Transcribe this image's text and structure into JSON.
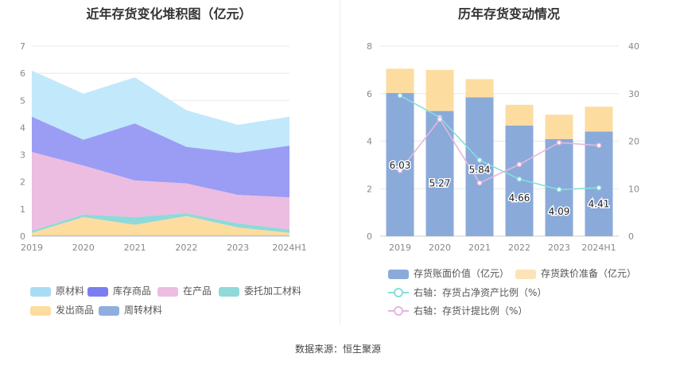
{
  "left_chart": {
    "title": "近年存货变化堆积图（亿元）",
    "legend": [
      {
        "label": "原材料",
        "color": "#a8dcf5"
      },
      {
        "label": "库存商品",
        "color": "#7b7ef0"
      },
      {
        "label": "在产品",
        "color": "#ecbde0"
      },
      {
        "label": "委托加工材料",
        "color": "#8fd9d9"
      },
      {
        "label": "发出商品",
        "color": "#fddca0"
      },
      {
        "label": "周转材料",
        "color": "#8faedd"
      }
    ]
  },
  "right_chart": {
    "title": "历年存货变动情况",
    "legend": [
      {
        "label": "存货账面价值（亿元）",
        "color": "#8aaad9"
      },
      {
        "label": "存货跌价准备（亿元）",
        "color": "#fde3b5"
      },
      {
        "label": "右轴：存货占净资产比例（%）",
        "color": "#86dede"
      },
      {
        "label": "右轴：存货计提比例（%）",
        "color": "#e6b6de"
      }
    ]
  },
  "source_text": "数据来源：恒生聚源",
  "chart_data": [
    {
      "type": "area",
      "title": "近年存货变化堆积图（亿元）",
      "categories": [
        "2019",
        "2020",
        "2021",
        "2022",
        "2023",
        "2024H1"
      ],
      "ylim": [
        0,
        7
      ],
      "yticks": [
        0,
        1,
        2,
        3,
        4,
        5,
        6,
        7
      ],
      "stacked": true,
      "series": [
        {
          "name": "周转材料",
          "color": "#8faedd",
          "values": [
            0.02,
            0.02,
            0.02,
            0.02,
            0.02,
            0.02
          ]
        },
        {
          "name": "发出商品",
          "color": "#fddca0",
          "values": [
            0.1,
            0.68,
            0.4,
            0.72,
            0.3,
            0.1
          ]
        },
        {
          "name": "委托加工材料",
          "color": "#8fd9d9",
          "values": [
            0.08,
            0.1,
            0.28,
            0.1,
            0.15,
            0.13
          ]
        },
        {
          "name": "在产品",
          "color": "#ecbde0",
          "values": [
            2.9,
            1.8,
            1.35,
            1.1,
            1.05,
            1.18
          ]
        },
        {
          "name": "库存商品",
          "color": "#9b9df5",
          "values": [
            1.3,
            0.95,
            2.1,
            1.35,
            1.55,
            1.9
          ]
        },
        {
          "name": "原材料",
          "color": "#c2e8fb",
          "values": [
            1.7,
            1.7,
            1.7,
            1.35,
            1.03,
            1.07
          ]
        }
      ]
    },
    {
      "type": "bar",
      "title": "历年存货变动情况",
      "categories": [
        "2019",
        "2020",
        "2021",
        "2022",
        "2023",
        "2024H1"
      ],
      "ylim": [
        0,
        8
      ],
      "yticks": [
        0,
        2,
        4,
        6,
        8
      ],
      "y2lim": [
        0,
        40
      ],
      "y2ticks": [
        0,
        10,
        20,
        30,
        40
      ],
      "stacked": true,
      "series": [
        {
          "name": "存货账面价值（亿元）",
          "color": "#8aaad9",
          "values": [
            6.03,
            5.27,
            5.84,
            4.66,
            4.09,
            4.41
          ],
          "show_labels": true
        },
        {
          "name": "存货跌价准备（亿元）",
          "color": "#fddca0",
          "values": [
            1.02,
            1.73,
            0.77,
            0.87,
            1.02,
            1.04
          ]
        },
        {
          "name": "右轴：存货占净资产比例（%）",
          "color": "#86dede",
          "axis": "right",
          "kind": "line",
          "values": [
            29.6,
            25.0,
            16.0,
            12.0,
            9.8,
            10.2
          ]
        },
        {
          "name": "右轴：存货计提比例（%）",
          "color": "#e6b6de",
          "axis": "right",
          "kind": "line",
          "values": [
            13.8,
            24.6,
            11.2,
            15.1,
            19.7,
            19.1
          ]
        }
      ]
    }
  ]
}
